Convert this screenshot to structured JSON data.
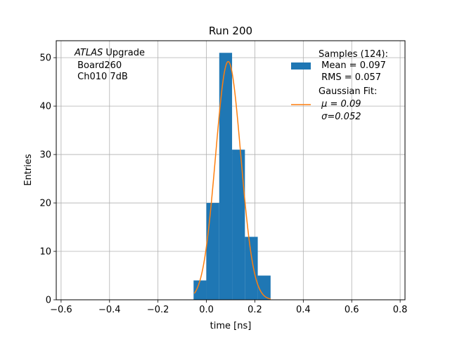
{
  "chart_data": {
    "type": "histogram",
    "title": "Run 200",
    "xlabel": "time [ns]",
    "ylabel": "Entries",
    "xlim": [
      -0.62,
      0.82
    ],
    "ylim": [
      0,
      53.5
    ],
    "grid": true,
    "xticks": [
      -0.6,
      -0.4,
      -0.2,
      0.0,
      0.2,
      0.4,
      0.6,
      0.8
    ],
    "xtick_labels": [
      "−0.6",
      "−0.4",
      "−0.2",
      "0.0",
      "0.2",
      "0.4",
      "0.6",
      "0.8"
    ],
    "yticks": [
      0,
      10,
      20,
      30,
      40,
      50
    ],
    "ytick_labels": [
      "0",
      "10",
      "20",
      "30",
      "40",
      "50"
    ],
    "bins": [
      {
        "x0": -0.053,
        "x1": -0.0,
        "count": 4
      },
      {
        "x0": 0.0,
        "x1": 0.053,
        "count": 20
      },
      {
        "x0": 0.053,
        "x1": 0.106,
        "count": 51
      },
      {
        "x0": 0.106,
        "x1": 0.159,
        "count": 31
      },
      {
        "x0": 0.159,
        "x1": 0.212,
        "count": 13
      },
      {
        "x0": 0.212,
        "x1": 0.265,
        "count": 5
      }
    ],
    "fit": {
      "type": "gaussian",
      "mu": 0.09,
      "sigma": 0.052,
      "amplitude": 49.2,
      "x_range": [
        -0.05,
        0.265
      ]
    },
    "colors": {
      "histogram": "#1f77b4",
      "fit": "#ff7f0e",
      "grid": "#b0b0b0"
    },
    "legend": {
      "placement": "top-right",
      "entries": [
        {
          "lines": [
            "Samples (124):",
            " Mean = 0.097",
            " RMS = 0.057"
          ],
          "kind": "patch"
        },
        {
          "lines": [
            "Gaussian Fit:",
            " μ = 0.09",
            " σ=0.052"
          ],
          "kind": "line"
        }
      ]
    },
    "annotation": {
      "italic": "ATLAS",
      "rest": " Upgrade",
      "line2": " Board260",
      "line3": " Ch010 7dB"
    }
  }
}
